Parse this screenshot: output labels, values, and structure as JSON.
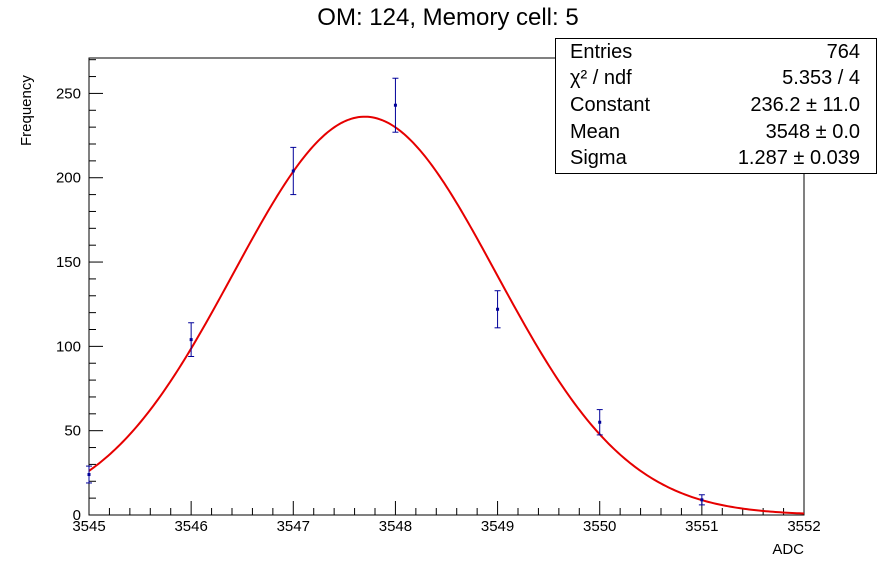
{
  "chart_data": {
    "type": "scatter",
    "title": "OM: 124,   Memory cell: 5",
    "xlabel": "ADC",
    "ylabel": "Frequency",
    "xlim": [
      3545,
      3552
    ],
    "ylim": [
      0,
      271
    ],
    "xticks": [
      3545,
      3546,
      3547,
      3548,
      3549,
      3550,
      3551,
      3552
    ],
    "yticks": [
      0,
      50,
      100,
      150,
      200,
      250
    ],
    "points": [
      {
        "x": 3545,
        "y": 24,
        "err": 5
      },
      {
        "x": 3546,
        "y": 104,
        "err": 10
      },
      {
        "x": 3547,
        "y": 204,
        "err": 14
      },
      {
        "x": 3548,
        "y": 243,
        "err": 16
      },
      {
        "x": 3549,
        "y": 122,
        "err": 11
      },
      {
        "x": 3550,
        "y": 55,
        "err": 7.5
      },
      {
        "x": 3551,
        "y": 9,
        "err": 3
      }
    ],
    "fit": {
      "type": "gaus",
      "constant": 236.2,
      "mean": 3547.7,
      "sigma": 1.287,
      "color": "#e60000"
    },
    "marker_color": "#000099",
    "stats": [
      {
        "key": "Entries",
        "value": "764"
      },
      {
        "key": "χ² / ndf",
        "value": "5.353 / 4"
      },
      {
        "key": "Constant",
        "value": "236.2 ± 11.0"
      },
      {
        "key": "Mean",
        "value": "3548 ± 0.0"
      },
      {
        "key": "Sigma",
        "value": "1.287 ± 0.039"
      }
    ]
  }
}
